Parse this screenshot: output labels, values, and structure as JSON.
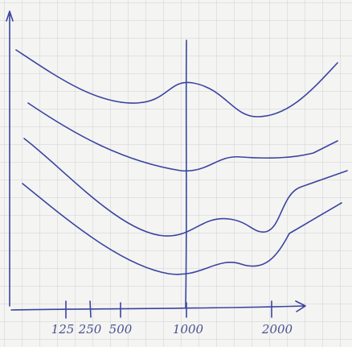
{
  "x_axis": {
    "labels": [
      "125",
      "250",
      "500",
      "1000",
      "2000"
    ]
  }
}
